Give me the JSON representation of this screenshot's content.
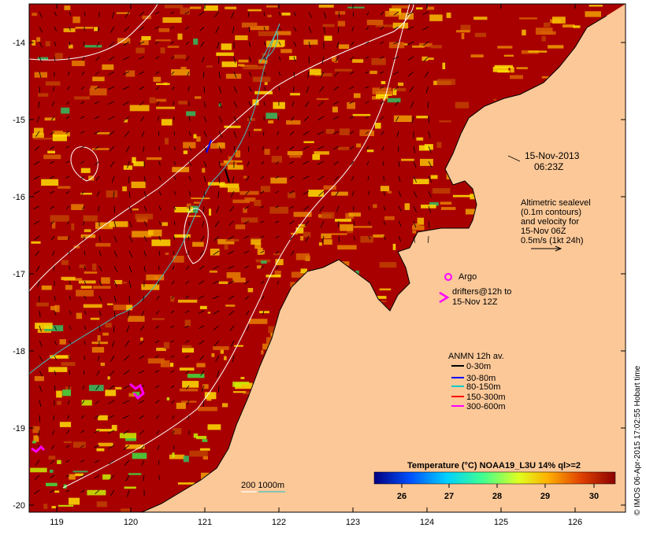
{
  "map": {
    "date_line": "15-Nov-2013",
    "time_line": "06:23Z",
    "altimetry_lines": [
      "Altimetric sealevel",
      "(0.1m contours)",
      "and velocity for",
      "15-Nov 06Z",
      "0.5m/s (1kt 24h)"
    ],
    "argo_label": "Argo",
    "drifters_lines": [
      "drifters@12h to",
      "15-Nov 12Z"
    ],
    "anmn_title": "ANMN 12h av.",
    "anmn_legend": [
      {
        "label": "0-30m",
        "color": "#000000"
      },
      {
        "label": "30-80m",
        "color": "#0000ff"
      },
      {
        "label": "80-150m",
        "color": "#00cccc"
      },
      {
        "label": "150-300m",
        "color": "#ff0000"
      },
      {
        "label": "300-600m",
        "color": "#ff00ff"
      }
    ],
    "isobath_label": "200  1000m",
    "colorbar_title": "Temperature (°C) NOAA19_L3U 14% ql>=2",
    "colorbar_ticks": [
      "26",
      "27",
      "28",
      "29",
      "30"
    ],
    "x_ticks": [
      "119",
      "120",
      "121",
      "122",
      "123",
      "124",
      "125",
      "126"
    ],
    "y_ticks": [
      "-14",
      "-15",
      "-16",
      "-17",
      "-18",
      "-19",
      "-20"
    ],
    "credit": "© IMOS 06-Apr-2015 17:02:55 Hobart time",
    "colors": {
      "land": "#fcc898",
      "sst_hot": "#a80000",
      "argo": "#ff00ff",
      "isobath": "#40c0c0"
    }
  }
}
